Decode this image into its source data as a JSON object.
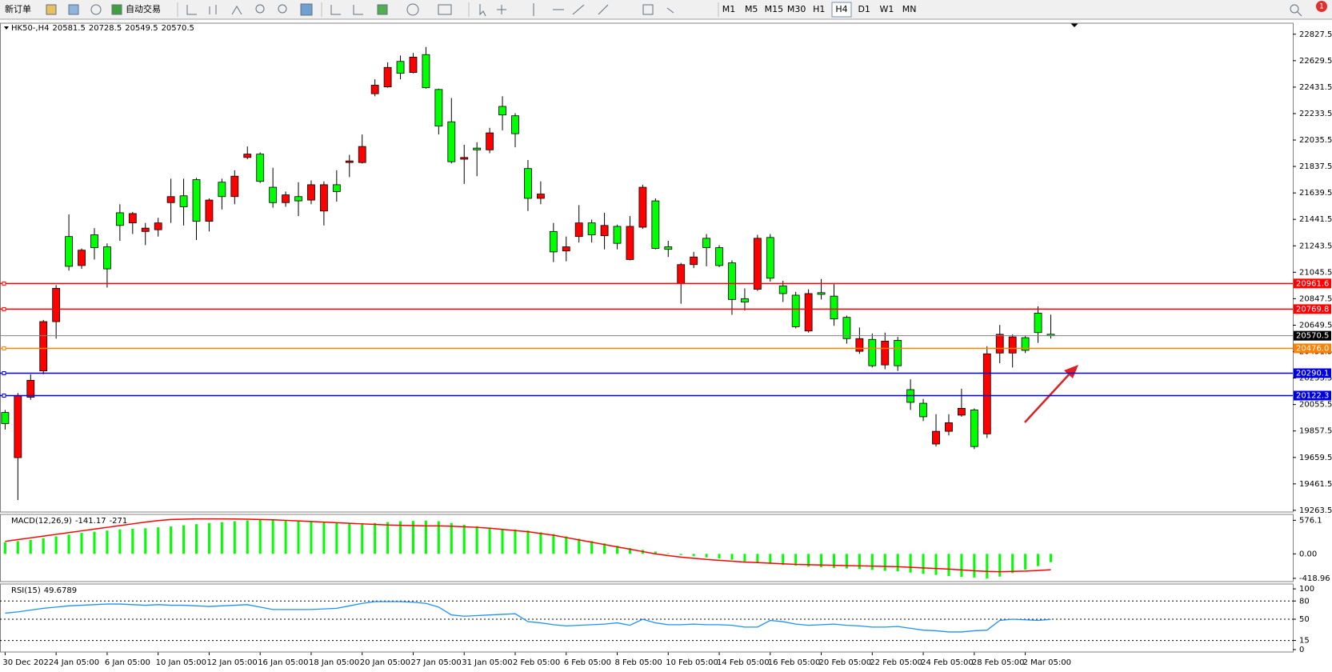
{
  "toolbar": {
    "new_order": "新订单",
    "auto_trading": "自动交易",
    "timeframes": [
      "M1",
      "M5",
      "M15",
      "M30",
      "H1",
      "H4",
      "D1",
      "W1",
      "MN"
    ],
    "active_timeframe": "H4",
    "notifications": 1
  },
  "chart_data": [
    {
      "type": "candlestick",
      "title": "HK50-,H4",
      "up_color": "#ff0000",
      "down_color": "#00ff00",
      "categories": [
        "30 Dec 2022",
        null,
        null,
        null,
        "4 Jan 05:00",
        null,
        null,
        null,
        "6 Jan 05:00",
        null,
        null,
        null,
        "10 Jan 05:00",
        null,
        null,
        null,
        "12 Jan 05:00",
        null,
        null,
        null,
        "16 Jan 05:00",
        null,
        null,
        null,
        "18 Jan 05:00",
        null,
        null,
        null,
        "20 Jan 05:00",
        null,
        null,
        null,
        "27 Jan 05:00",
        null,
        null,
        null,
        "31 Jan 05:00",
        null,
        null,
        null,
        "2 Feb 05:00",
        null,
        null,
        null,
        "6 Feb 05:00",
        null,
        null,
        null,
        "8 Feb 05:00",
        null,
        null,
        null,
        "10 Feb 05:00",
        null,
        null,
        null,
        "14 Feb 05:00",
        null,
        null,
        null,
        "16 Feb 05:00",
        null,
        null,
        null,
        "20 Feb 05:00",
        null,
        null,
        null,
        "22 Feb 05:00",
        null,
        null,
        null,
        "24 Feb 05:00",
        null,
        null,
        null,
        "28 Feb 05:00",
        null,
        null,
        null,
        "2 Mar 05:00",
        null,
        null
      ],
      "open": [
        19996,
        19658,
        20110,
        20307,
        20676,
        21313,
        21096,
        21326,
        21236,
        21491,
        21415,
        21351,
        21364,
        21567,
        21618,
        21739,
        21427,
        21720,
        21612,
        21905,
        21930,
        21682,
        21567,
        21612,
        21586,
        21504,
        21701,
        21867,
        21867,
        22382,
        22433,
        22624,
        22541,
        22675,
        22414,
        22172,
        21892,
        21975,
        21962,
        22287,
        22217,
        21822,
        21599,
        21351,
        21205,
        21313,
        21415,
        21319,
        21389,
        21141,
        21383,
        21580,
        21236,
        20963,
        21103,
        21300,
        21230,
        21116,
        20848,
        20918,
        21306,
        20944,
        20874,
        20606,
        20893,
        20867,
        20708,
        20454,
        20543,
        20352,
        20536,
        20167,
        20065,
        19760,
        19855,
        19976,
        20015,
        19836,
        20441,
        20441,
        20556,
        20740,
        20581.5
      ],
      "high": [
        20015,
        20142,
        20282,
        20689,
        20950,
        21478,
        21224,
        21376,
        21262,
        21555,
        21497,
        21415,
        21453,
        21746,
        21746,
        21752,
        21599,
        21746,
        21809,
        21987,
        21943,
        21828,
        21650,
        21720,
        21733,
        21726,
        21809,
        21924,
        22077,
        22490,
        22617,
        22668,
        22687,
        22732,
        22420,
        22350,
        22000,
        22019,
        22127,
        22363,
        22236,
        21886,
        21726,
        21415,
        21313,
        21548,
        21440,
        21491,
        21402,
        21466,
        21701,
        21599,
        21281,
        21116,
        21198,
        21332,
        21249,
        21135,
        20925,
        21326,
        21332,
        20982,
        20899,
        20918,
        20995,
        20956,
        20721,
        20632,
        20587,
        20594,
        20562,
        20244,
        20097,
        19983,
        19983,
        20174,
        20027,
        20492,
        20651,
        20581,
        20568,
        20791,
        20728.5
      ],
      "low": [
        19868,
        19340,
        20091,
        20282,
        20549,
        21058,
        21071,
        21141,
        20931,
        21281,
        21332,
        21249,
        21313,
        21415,
        21396,
        21287,
        21351,
        21516,
        21555,
        21892,
        21714,
        21529,
        21536,
        21466,
        21555,
        21396,
        21574,
        21758,
        21860,
        22363,
        22427,
        22490,
        22535,
        22420,
        22077,
        21860,
        21707,
        21765,
        21937,
        22108,
        21981,
        21504,
        21555,
        21122,
        21128,
        21268,
        21268,
        21217,
        21217,
        21135,
        21370,
        21217,
        21160,
        20810,
        21077,
        21090,
        21084,
        20727,
        20759,
        20906,
        20976,
        20823,
        20626,
        20594,
        20842,
        20645,
        20511,
        20435,
        20333,
        20320,
        20307,
        20015,
        19932,
        19741,
        19824,
        19964,
        19722,
        19805,
        20365,
        20333,
        20441,
        20517,
        20549.5
      ],
      "close": [
        19913,
        20123,
        20237,
        20676,
        20925,
        21090,
        21211,
        21230,
        21071,
        21396,
        21485,
        21376,
        21415,
        21612,
        21536,
        21427,
        21586,
        21612,
        21765,
        21930,
        21726,
        21567,
        21625,
        21580,
        21701,
        21701,
        21650,
        21879,
        21987,
        22446,
        22579,
        22535,
        22656,
        22427,
        22140,
        21873,
        21905,
        21962,
        22089,
        22223,
        22083,
        21599,
        21631,
        21198,
        21236,
        21415,
        21326,
        21396,
        21262,
        21389,
        21682,
        21224,
        21217,
        21103,
        21160,
        21230,
        21096,
        20842,
        20823,
        21300,
        21001,
        20886,
        20638,
        20886,
        20880,
        20696,
        20549,
        20549,
        20346,
        20530,
        20346,
        20072,
        19964,
        19855,
        19919,
        20027,
        19741,
        20435,
        20581,
        20562,
        20461,
        20594,
        20570.5
      ],
      "ylim": [
        19251,
        22910
      ],
      "yticks": [
        22827.5,
        22629.5,
        22431.5,
        22233.5,
        22035.5,
        21837.5,
        21639.5,
        21441.5,
        21243.5,
        21045.5,
        20847.5,
        20649.5,
        20451.5,
        20253.5,
        20055.5,
        19857.5,
        19659.5,
        19461.5,
        19263.5
      ],
      "levels": [
        {
          "value": 20961.6,
          "color": "#ff0000"
        },
        {
          "value": 20769.8,
          "color": "#ff0000"
        },
        {
          "value": 20476,
          "label": "20476.0",
          "color": "#ff8000"
        },
        {
          "value": 20290.1,
          "color": "#0000e0"
        },
        {
          "value": 20122.3,
          "color": "#0000e0"
        }
      ],
      "last_price_color": "#000000"
    },
    {
      "type": "macd",
      "title": "MACD(12,26,9)",
      "series": [
        {
          "color": "#00ff00",
          "values": [
            200,
            220,
            240,
            270,
            300,
            330,
            360,
            380,
            400,
            420,
            430,
            440,
            455,
            470,
            490,
            510,
            530,
            545,
            560,
            575,
            585,
            580,
            570,
            560,
            550,
            540,
            535,
            530,
            528,
            530,
            545,
            560,
            565,
            570,
            560,
            530,
            500,
            475,
            450,
            430,
            420,
            400,
            370,
            340,
            300,
            260,
            220,
            180,
            140,
            100,
            70,
            40,
            10,
            -20,
            -40,
            -60,
            -80,
            -100,
            -130,
            -150,
            -170,
            -190,
            -200,
            -220,
            -230,
            -240,
            -250,
            -260,
            -275,
            -290,
            -300,
            -320,
            -340,
            -360,
            -380,
            -395,
            -405,
            -420,
            -390,
            -330,
            -270,
            -210,
            -141.17
          ]
        },
        {
          "color": "#ff0000",
          "values": [
            215,
            245,
            275,
            305,
            335,
            365,
            395,
            425,
            455,
            485,
            515,
            545,
            570,
            590,
            595,
            600,
            600,
            600,
            598,
            595,
            590,
            585,
            575,
            565,
            555,
            545,
            535,
            525,
            515,
            505,
            495,
            490,
            485,
            480,
            480,
            475,
            465,
            455,
            440,
            420,
            400,
            380,
            350,
            320,
            280,
            240,
            200,
            160,
            120,
            80,
            40,
            0,
            -30,
            -55,
            -75,
            -95,
            -110,
            -125,
            -140,
            -150,
            -160,
            -170,
            -180,
            -185,
            -190,
            -195,
            -200,
            -205,
            -210,
            -215,
            -220,
            -230,
            -240,
            -250,
            -260,
            -275,
            -290,
            -300,
            -305,
            -300,
            -295,
            -285,
            -271
          ]
        }
      ],
      "ylim": [
        -475,
        677
      ],
      "yticks": [
        576.1,
        {
          "value": 0,
          "label": "0.00"
        },
        -418.96
      ]
    },
    {
      "type": "line",
      "title": "RSI(15)",
      "color": "#1e90ff",
      "values": [
        60,
        62,
        65,
        68,
        70,
        72,
        73,
        74,
        75,
        75,
        74,
        73,
        74,
        73,
        73,
        72,
        71,
        72,
        73,
        74,
        70,
        66,
        66,
        66,
        66,
        67,
        68,
        72,
        76,
        79,
        79,
        79,
        78,
        76,
        70,
        57,
        55,
        56,
        57,
        58,
        59,
        46,
        44,
        41,
        39,
        40,
        41,
        42,
        44,
        40,
        50,
        44,
        41,
        41,
        42,
        41,
        41,
        40,
        37,
        37,
        48,
        46,
        42,
        40,
        41,
        42,
        40,
        39,
        37,
        37,
        38,
        35,
        32,
        31,
        29,
        29,
        31,
        32,
        48,
        50,
        49,
        48,
        49.6789
      ],
      "ylim": [
        -4,
        108
      ],
      "yticks": [
        100,
        80,
        50,
        15,
        0
      ],
      "levels": [
        80,
        50,
        15
      ]
    }
  ]
}
